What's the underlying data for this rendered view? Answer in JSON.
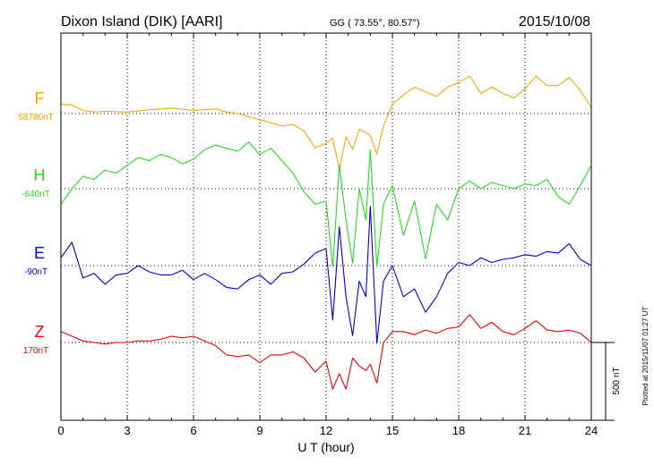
{
  "header": {
    "station": "Dixon Island (DIK)  [AARI]",
    "coords": "GG ( 73.55°,  80.57°)",
    "date": "2015/10/08"
  },
  "footer": {
    "xlabel": "U T (hour)",
    "plotted": "Plotted at 2015/11/07 01:27 UT"
  },
  "scale_bar": {
    "label": "500 nT",
    "value_nT": 500
  },
  "chart_data": {
    "type": "line",
    "x_unit": "hour",
    "xlim": [
      0,
      24
    ],
    "x_ticks": [
      0,
      3,
      6,
      9,
      12,
      15,
      18,
      21,
      24
    ],
    "x_tick_labels": [
      "0",
      "3",
      "6",
      "9",
      "12",
      "15",
      "18",
      "21",
      "24"
    ],
    "ylabel": "",
    "grid": true,
    "series": [
      {
        "name": "F",
        "baseline_label": "58780nT",
        "baseline_nT": 58780,
        "color": "#f5a800",
        "x": [
          0,
          0.5,
          1,
          1.5,
          2,
          3,
          4,
          5,
          6,
          6.5,
          7,
          7.5,
          8,
          8.5,
          9,
          9.5,
          10,
          10.5,
          11,
          11.5,
          12,
          12.3,
          12.6,
          12.9,
          13.2,
          13.5,
          14,
          14.3,
          14.6,
          15,
          15.5,
          16,
          16.5,
          17,
          17.5,
          18,
          18.5,
          19,
          19.5,
          20,
          20.5,
          21,
          21.5,
          22,
          22.5,
          23,
          23.5,
          24
        ],
        "values": [
          60,
          55,
          20,
          10,
          15,
          10,
          25,
          35,
          20,
          25,
          30,
          10,
          0,
          -20,
          -40,
          -60,
          -80,
          -70,
          -110,
          -220,
          -190,
          -160,
          -360,
          -150,
          -230,
          -100,
          -140,
          -260,
          -80,
          60,
          120,
          170,
          140,
          110,
          170,
          200,
          240,
          130,
          170,
          130,
          100,
          160,
          240,
          180,
          180,
          230,
          150,
          40
        ]
      },
      {
        "name": "H",
        "baseline_label": "-640nT",
        "baseline_nT": -640,
        "color": "#22dd22",
        "x": [
          0,
          0.5,
          1,
          1.5,
          2,
          2.5,
          3,
          3.5,
          4,
          4.5,
          5,
          5.5,
          6,
          6.5,
          7,
          7.5,
          8,
          8.5,
          9,
          9.5,
          10,
          10.5,
          11,
          11.5,
          12,
          12.3,
          12.6,
          12.9,
          13.2,
          13.5,
          13.8,
          14,
          14.3,
          14.6,
          15,
          15.5,
          16,
          16.5,
          17,
          17.5,
          18,
          18.5,
          19,
          19.5,
          20,
          20.5,
          21,
          21.5,
          22,
          22.5,
          23,
          23.5,
          24
        ],
        "values": [
          -100,
          0,
          80,
          60,
          120,
          100,
          150,
          200,
          180,
          220,
          200,
          160,
          190,
          250,
          280,
          260,
          240,
          300,
          220,
          260,
          180,
          100,
          -20,
          -100,
          -80,
          -500,
          150,
          -200,
          -480,
          0,
          -200,
          250,
          -500,
          -100,
          20,
          -300,
          -80,
          -450,
          -100,
          -200,
          0,
          50,
          0,
          40,
          20,
          0,
          30,
          20,
          60,
          -50,
          -100,
          20,
          150
        ]
      },
      {
        "name": "E",
        "baseline_label": "-90nT",
        "baseline_nT": -90,
        "color": "#0000dd",
        "x": [
          0,
          0.5,
          1,
          1.5,
          2,
          2.5,
          3,
          3.5,
          4,
          4.5,
          5,
          5.5,
          6,
          6.5,
          7,
          7.5,
          8,
          8.5,
          9,
          9.5,
          10,
          10.5,
          11,
          11.5,
          12,
          12.3,
          12.6,
          12.9,
          13.2,
          13.5,
          13.8,
          14,
          14.3,
          14.6,
          15,
          15.5,
          16,
          16.5,
          17,
          17.5,
          18,
          18.5,
          19,
          19.5,
          20,
          20.5,
          21,
          21.5,
          22,
          22.5,
          23,
          23.5,
          24
        ],
        "values": [
          50,
          150,
          -80,
          -50,
          -120,
          -60,
          -50,
          0,
          -40,
          -60,
          -60,
          -30,
          -90,
          -50,
          -90,
          -140,
          -150,
          -90,
          -60,
          -120,
          -50,
          -40,
          10,
          80,
          110,
          -350,
          250,
          -200,
          -450,
          -100,
          -200,
          380,
          -500,
          -100,
          0,
          -200,
          -150,
          -300,
          -200,
          -50,
          20,
          0,
          50,
          20,
          40,
          50,
          70,
          60,
          90,
          80,
          140,
          40,
          0
        ]
      },
      {
        "name": "Z",
        "baseline_label": "170nT",
        "baseline_nT": 170,
        "color": "#ee0000",
        "x": [
          0,
          0.5,
          1,
          1.5,
          2,
          2.5,
          3,
          3.5,
          4,
          4.5,
          5,
          5.5,
          6,
          6.5,
          7,
          7.5,
          8,
          8.5,
          9,
          9.5,
          10,
          10.5,
          11,
          11.5,
          12,
          12.3,
          12.6,
          12.9,
          13.2,
          13.5,
          13.8,
          14,
          14.3,
          14.6,
          15,
          15.5,
          16,
          16.5,
          17,
          17.5,
          18,
          18.5,
          19,
          19.5,
          20,
          20.5,
          21,
          21.5,
          22,
          22.5,
          23,
          23.5,
          24
        ],
        "values": [
          70,
          40,
          10,
          0,
          -10,
          0,
          0,
          10,
          10,
          20,
          40,
          30,
          40,
          10,
          -20,
          -80,
          -90,
          -80,
          -130,
          -80,
          -80,
          -60,
          -100,
          -190,
          -120,
          -300,
          -200,
          -300,
          -100,
          -150,
          -180,
          -140,
          -260,
          0,
          70,
          70,
          50,
          80,
          60,
          90,
          100,
          180,
          90,
          130,
          70,
          50,
          90,
          140,
          80,
          70,
          80,
          60,
          0
        ]
      }
    ]
  }
}
